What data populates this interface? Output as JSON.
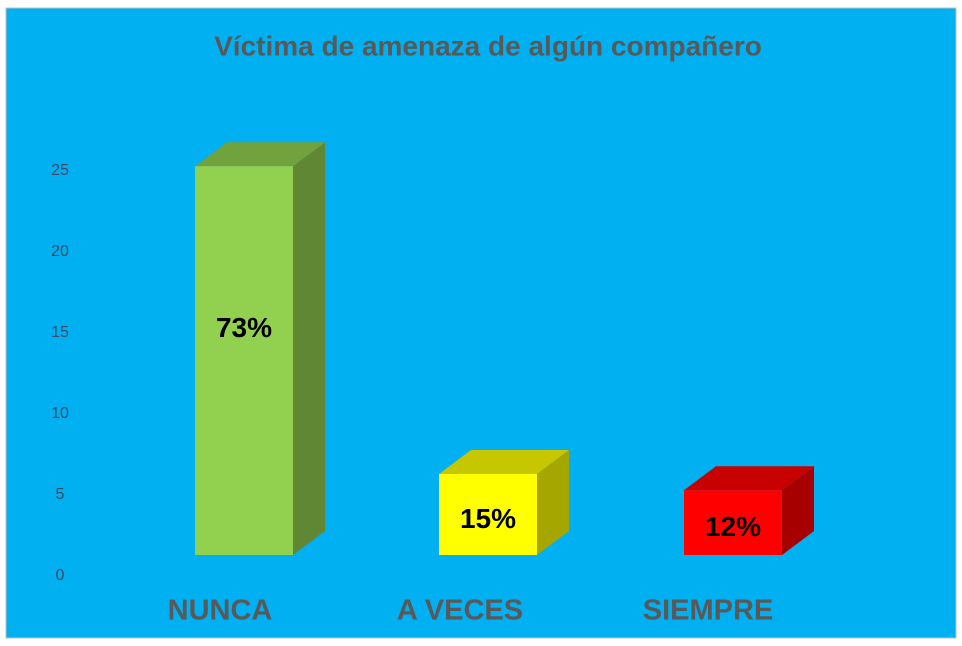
{
  "chart_data": {
    "type": "bar3d",
    "title": "Víctima de amenaza de algún compañero",
    "categories": [
      "NUNCA",
      "A VECES",
      "SIEMPRE"
    ],
    "values": [
      24,
      5,
      4
    ],
    "value_labels": [
      "73%",
      "15%",
      "12%"
    ],
    "colors": [
      "#92d050",
      "#ffff00",
      "#ff0000"
    ],
    "ylim": [
      0,
      25
    ],
    "yticks": [
      0,
      5,
      10,
      15,
      20,
      25
    ],
    "grid": false
  }
}
